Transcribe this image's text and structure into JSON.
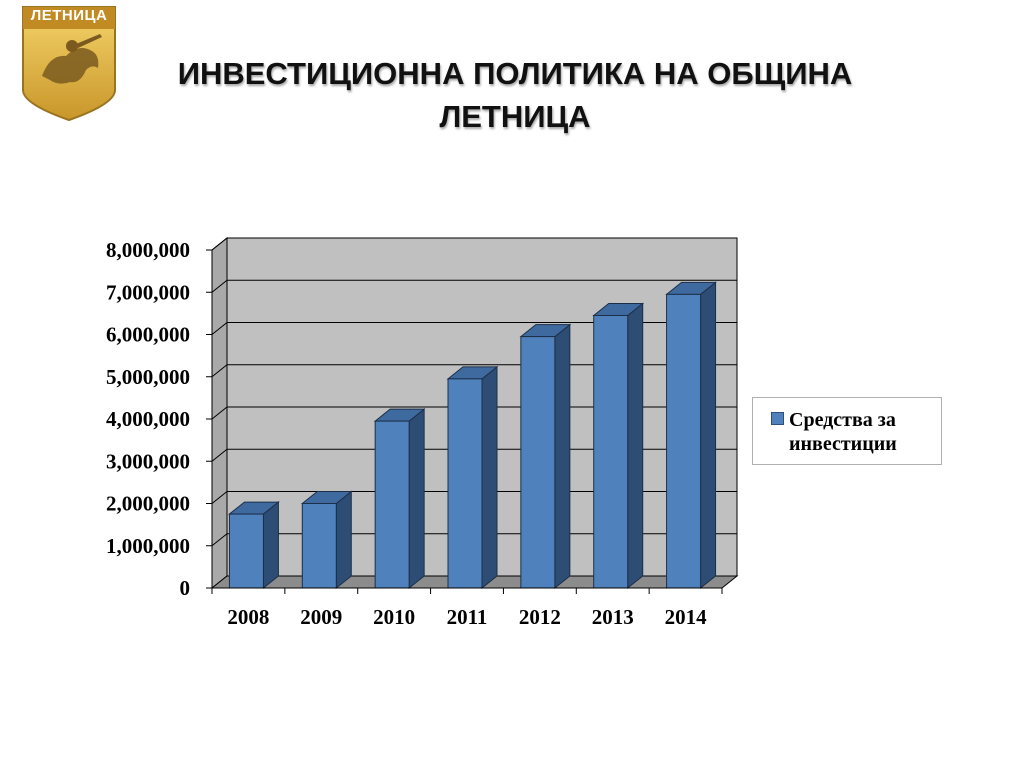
{
  "logo": {
    "text": "ЛЕТНИЦА"
  },
  "title": "ИНВЕСТИЦИОННА ПОЛИТИКА НА ОБЩИНА ЛЕТНИЦА",
  "colors": {
    "bar_front": "#4f81bd",
    "bar_side": "#2e4d75",
    "bar_top": "#3f6aa0",
    "wall": "#c0c0c0",
    "floor": "#8c8c8c"
  },
  "chart_data": {
    "type": "bar",
    "categories": [
      "2008",
      "2009",
      "2010",
      "2011",
      "2012",
      "2013",
      "2014"
    ],
    "series": [
      {
        "name": "Средства за инвестиции",
        "values": [
          1750000,
          2000000,
          3950000,
          4950000,
          5950000,
          6450000,
          6950000
        ]
      }
    ],
    "yticks": [
      "0",
      "1,000,000",
      "2,000,000",
      "3,000,000",
      "4,000,000",
      "5,000,000",
      "6,000,000",
      "7,000,000",
      "8,000,000"
    ],
    "ylim": [
      0,
      8000000
    ],
    "grid": true,
    "legend_position": "right",
    "style": "3d-column"
  }
}
